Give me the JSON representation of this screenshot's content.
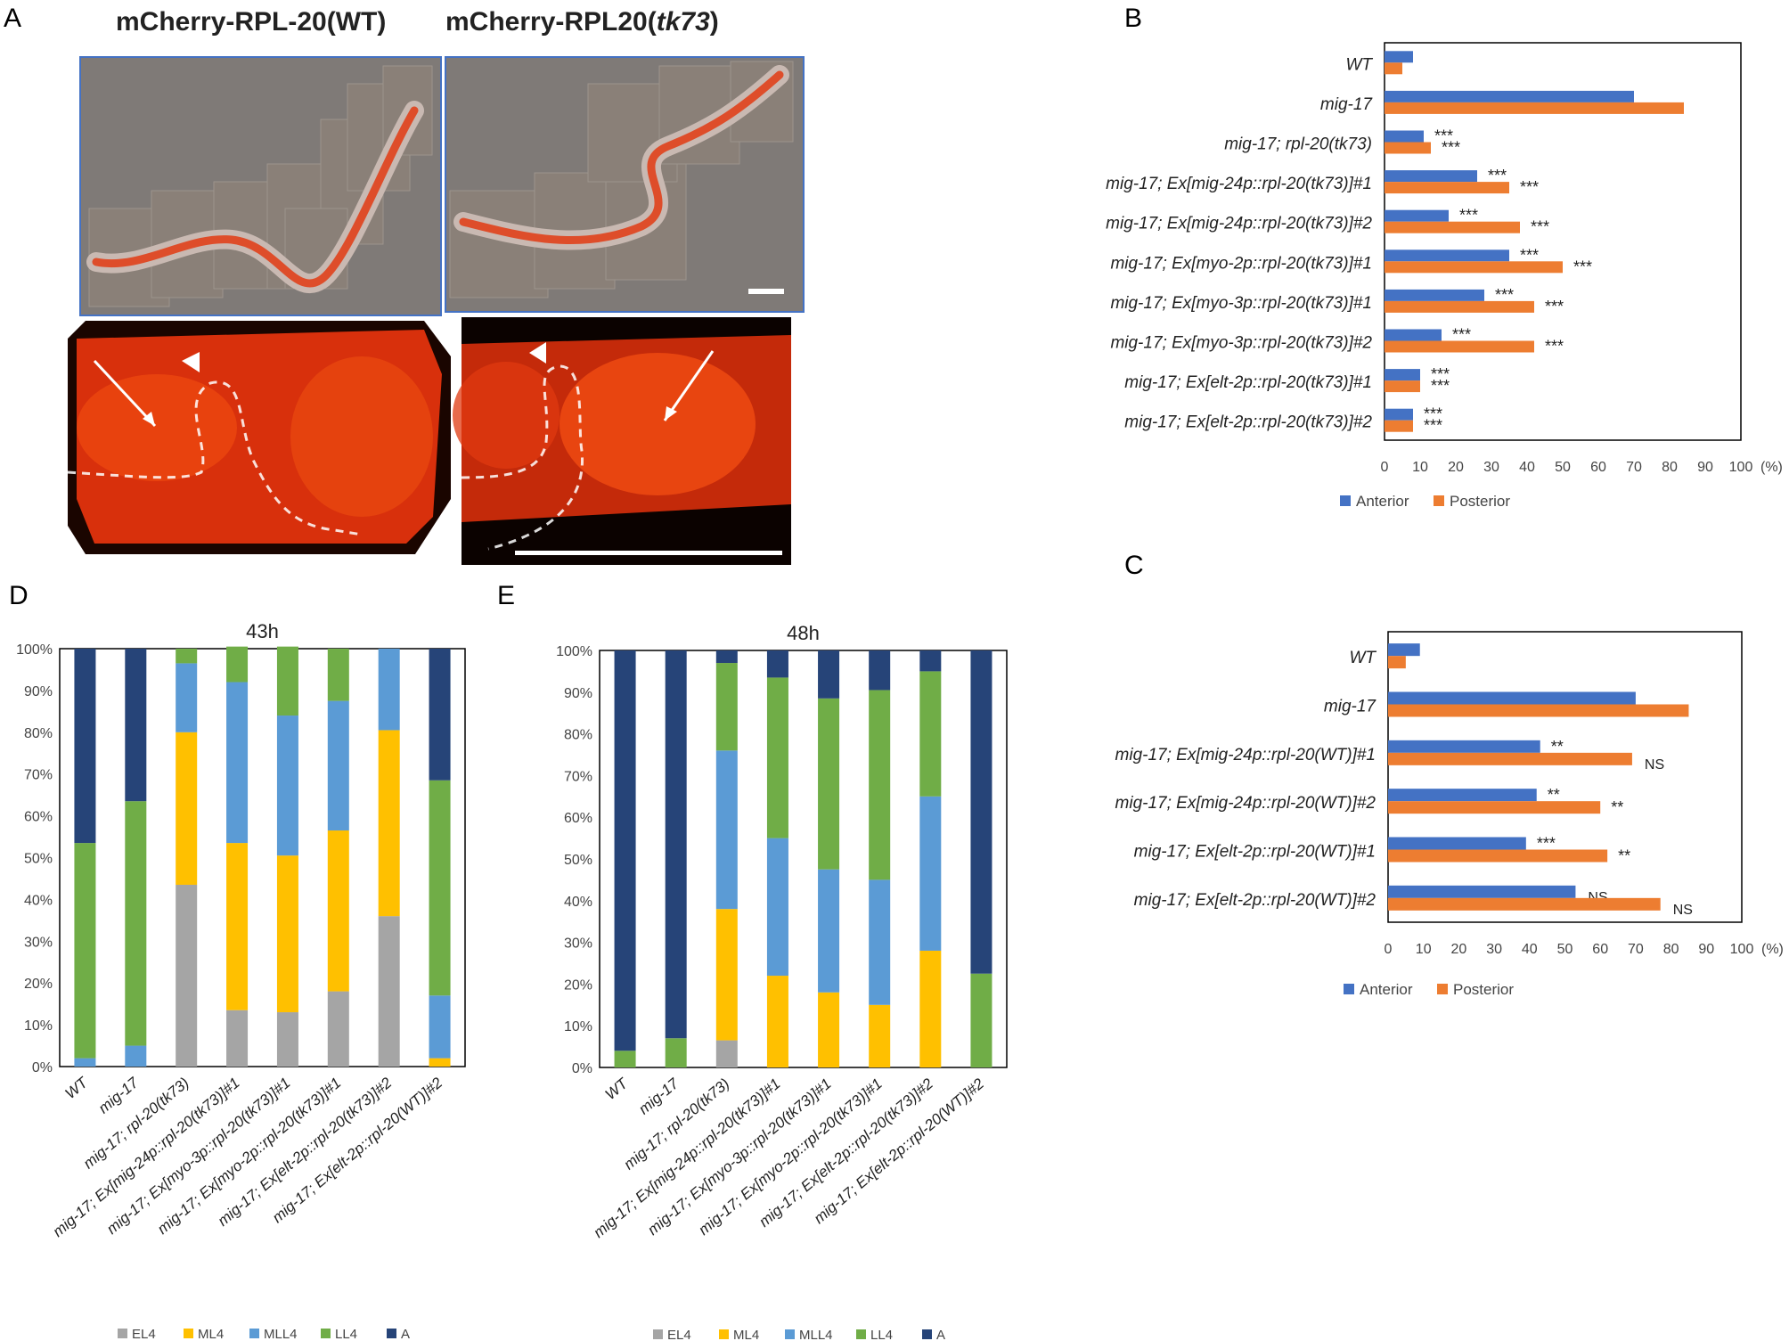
{
  "panel_labels": {
    "A": "A",
    "B": "B",
    "C": "C",
    "D": "D",
    "E": "E"
  },
  "panel_a": {
    "title_wt": "mCherry-RPL-20(WT)",
    "title_mut_prefix": "mCherry-RPL20(",
    "title_mut_italic": "tk73",
    "title_mut_suffix": ")",
    "image_depictions": [
      "whole-worm-wt",
      "whole-worm-tk73",
      "gonad-closeup-wt",
      "gonad-closeup-tk73"
    ],
    "colors": {
      "fluorescence": "#e23a12",
      "background_gray": "#7f7a77",
      "tile": "#8a8078"
    }
  },
  "chart_data": [
    {
      "id": "B",
      "type": "bar",
      "orientation": "horizontal",
      "categories": [
        "WT",
        "mig-17",
        "mig-17; rpl-20(tk73)",
        "mig-17; Ex[mig-24p::rpl-20(tk73)]#1",
        "mig-17; Ex[mig-24p::rpl-20(tk73)]#2",
        "mig-17; Ex[myo-2p::rpl-20(tk73)]#1",
        "mig-17; Ex[myo-3p::rpl-20(tk73)]#1",
        "mig-17; Ex[myo-3p::rpl-20(tk73)]#2",
        "mig-17; Ex[elt-2p::rpl-20(tk73)]#1",
        "mig-17; Ex[elt-2p::rpl-20(tk73)]#2"
      ],
      "series": [
        {
          "name": "Anterior",
          "color": "#4472c4",
          "values": [
            8,
            70,
            11,
            26,
            18,
            35,
            28,
            16,
            10,
            8
          ],
          "annotations": [
            "",
            "",
            "***",
            "***",
            "***",
            "***",
            "***",
            "***",
            "***",
            "***"
          ]
        },
        {
          "name": "Posterior",
          "color": "#ed7d31",
          "values": [
            5,
            84,
            13,
            35,
            38,
            50,
            42,
            42,
            10,
            8
          ],
          "annotations": [
            "",
            "",
            "***",
            "***",
            "***",
            "***",
            "***",
            "***",
            "***",
            "***"
          ]
        }
      ],
      "xlim": [
        0,
        100
      ],
      "xticks": [
        "0",
        "10",
        "20",
        "30",
        "40",
        "50",
        "60",
        "70",
        "80",
        "90",
        "100"
      ],
      "xunit": "(%)",
      "legend": "bottom"
    },
    {
      "id": "C",
      "type": "bar",
      "orientation": "horizontal",
      "categories": [
        "WT",
        "mig-17",
        "mig-17; Ex[mig-24p::rpl-20(WT)]#1",
        "mig-17; Ex[mig-24p::rpl-20(WT)]#2",
        "mig-17; Ex[elt-2p::rpl-20(WT)]#1",
        "mig-17; Ex[elt-2p::rpl-20(WT)]#2"
      ],
      "series": [
        {
          "name": "Anterior",
          "color": "#4472c4",
          "values": [
            9,
            70,
            43,
            42,
            39,
            53
          ],
          "annotations": [
            "",
            "",
            "**",
            "**",
            "***",
            "NS"
          ]
        },
        {
          "name": "Posterior",
          "color": "#ed7d31",
          "values": [
            5,
            85,
            69,
            60,
            62,
            77
          ],
          "annotations": [
            "",
            "",
            "NS",
            "**",
            "**",
            "NS"
          ]
        }
      ],
      "xlim": [
        0,
        100
      ],
      "xticks": [
        "0",
        "10",
        "20",
        "30",
        "40",
        "50",
        "60",
        "70",
        "80",
        "90",
        "100"
      ],
      "xunit": "(%)",
      "legend": "bottom"
    },
    {
      "id": "D",
      "type": "bar",
      "stacked": true,
      "title": "43h",
      "categories": [
        "WT",
        "mig-17",
        "mig-17; rpl-20(tk73)",
        "mig-17; Ex[mig-24p::rpl-20(tk73)]#1",
        "mig-17; Ex[myo-3p::rpl-20(tk73)]#1",
        "mig-17; Ex[myo-2p::rpl-20(tk73)]#1",
        "mig-17; Ex[elt-2p::rpl-20(tk73)]#2",
        "mig-17; Ex[elt-2p::rpl-20(WT)]#2"
      ],
      "series": [
        {
          "name": "EL4",
          "color": "#a5a5a5",
          "values": [
            0,
            0,
            43.5,
            13.5,
            13,
            18,
            36,
            0
          ]
        },
        {
          "name": "ML4",
          "color": "#ffc000",
          "values": [
            0,
            0,
            36.5,
            40,
            37.5,
            38.5,
            44.5,
            2
          ]
        },
        {
          "name": "MLL4",
          "color": "#5b9bd5",
          "values": [
            2,
            5,
            16.5,
            38.5,
            33.5,
            31,
            19.5,
            15
          ]
        },
        {
          "name": "LL4",
          "color": "#70ad47",
          "values": [
            51.5,
            58.5,
            3.5,
            8.5,
            16.5,
            12.5,
            0,
            51.5
          ]
        },
        {
          "name": "A",
          "color": "#264478",
          "values": [
            46.5,
            36.5,
            0,
            0,
            0,
            0,
            0,
            31.5
          ]
        }
      ],
      "ylim": [
        0,
        100
      ],
      "yticks": [
        "0%",
        "10%",
        "20%",
        "30%",
        "40%",
        "50%",
        "60%",
        "70%",
        "80%",
        "90%",
        "100%"
      ],
      "legend": "bottom"
    },
    {
      "id": "E",
      "type": "bar",
      "stacked": true,
      "title": "48h",
      "categories": [
        "WT",
        "mig-17",
        "mig-17; rpl-20(tk73)",
        "mig-17; Ex[mig-24p::rpl-20(tk73)]#1",
        "mig-17; Ex[myo-3p::rpl-20(tk73)]#1",
        "mig-17; Ex[myo-2p::rpl-20(tk73)]#1",
        "mig-17; Ex[elt-2p::rpl-20(tk73)]#2",
        "mig-17; Ex[elt-2p::rpl-20(WT)]#2"
      ],
      "series": [
        {
          "name": "EL4",
          "color": "#a5a5a5",
          "values": [
            0,
            0,
            6.5,
            0,
            0,
            0,
            0,
            0
          ]
        },
        {
          "name": "ML4",
          "color": "#ffc000",
          "values": [
            0,
            0,
            31.5,
            22,
            18,
            15,
            28,
            0
          ]
        },
        {
          "name": "MLL4",
          "color": "#5b9bd5",
          "values": [
            0,
            0,
            38,
            33,
            29.5,
            30,
            37,
            0
          ]
        },
        {
          "name": "LL4",
          "color": "#70ad47",
          "values": [
            4,
            7,
            21,
            38.5,
            41,
            45.5,
            30,
            22.5
          ]
        },
        {
          "name": "A",
          "color": "#264478",
          "values": [
            96,
            93,
            3,
            6.5,
            11.5,
            9.5,
            5,
            77.5
          ]
        }
      ],
      "ylim": [
        0,
        100
      ],
      "yticks": [
        "0%",
        "10%",
        "20%",
        "30%",
        "40%",
        "50%",
        "60%",
        "70%",
        "80%",
        "90%",
        "100%"
      ],
      "legend": "bottom"
    }
  ]
}
